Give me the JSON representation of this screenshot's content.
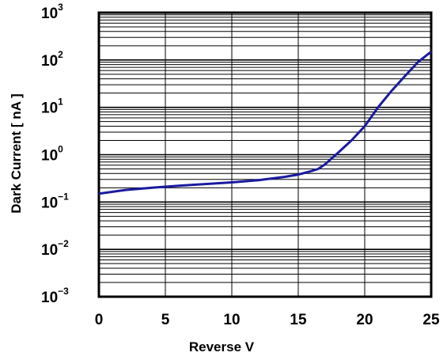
{
  "chart_data": {
    "type": "line",
    "title": "",
    "xlabel": "Reverse V",
    "ylabel": "Dark Current [ nA ]",
    "xlim": [
      0,
      25
    ],
    "ylim": [
      0.001,
      1000
    ],
    "yscale": "log",
    "grid": true,
    "legend": "none",
    "x_ticks": [
      "0",
      "5",
      "10",
      "15",
      "20",
      "25"
    ],
    "y_ticks": [
      {
        "base": "10",
        "exp": "−3"
      },
      {
        "base": "10",
        "exp": "−2"
      },
      {
        "base": "10",
        "exp": "−1"
      },
      {
        "base": "10",
        "exp": "0"
      },
      {
        "base": "10",
        "exp": "1"
      },
      {
        "base": "10",
        "exp": "2"
      },
      {
        "base": "10",
        "exp": "3"
      }
    ],
    "series": [
      {
        "color": "#1a1aa0",
        "x": [
          0,
          2,
          4,
          6,
          8,
          10,
          12,
          14,
          15,
          16,
          16.5,
          17,
          18,
          19,
          20,
          21,
          22,
          23,
          24,
          25
        ],
        "y": [
          0.15,
          0.18,
          0.2,
          0.22,
          0.24,
          0.26,
          0.29,
          0.34,
          0.38,
          0.45,
          0.5,
          0.62,
          1.1,
          2.0,
          4.0,
          10,
          22,
          45,
          90,
          150
        ]
      }
    ]
  },
  "colors": {
    "grid": "#000000",
    "line": "#1a1aa0",
    "background": "#ffffff"
  }
}
